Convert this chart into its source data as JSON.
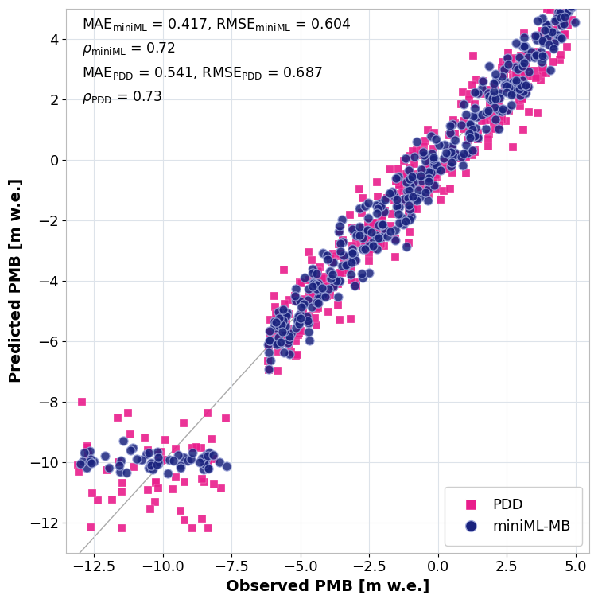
{
  "title": "",
  "xlabel": "Observed PMB [m w.e.]",
  "ylabel": "Predicted PMB [m w.e.]",
  "xlim": [
    -13.5,
    5.5
  ],
  "ylim": [
    -13.0,
    5.0
  ],
  "xticks": [
    -12.5,
    -10.0,
    -7.5,
    -5.0,
    -2.5,
    0.0,
    2.5,
    5.0
  ],
  "yticks": [
    -12,
    -10,
    -8,
    -6,
    -4,
    -2,
    0,
    2,
    4
  ],
  "annotation_lines": [
    "MAE$_{\\mathregular{miniML}}$ = 0.417, RMSE$_{\\mathregular{miniML}}$ = 0.604",
    "$\\rho_{\\mathregular{miniML}}$ = 0.72",
    "MAE$_{\\mathregular{PDD}}$ = 0.541, RMSE$_{\\mathregular{PDD}}$ = 0.687",
    "$\\rho_{\\mathregular{PDD}}$ = 0.73"
  ],
  "pdd_color": "#E91E8C",
  "ml_color": "#1a237e",
  "ml_edge_color": "#9fa8da",
  "diagonal_color": "#aaaaaa",
  "background_color": "#ffffff",
  "grid_color": "#dde3ea",
  "legend_labels": [
    "PDD",
    "miniML-MB"
  ],
  "marker_size_pdd": 55,
  "marker_size_ml": 65,
  "font_size": 13,
  "annotation_font_size": 12.5
}
